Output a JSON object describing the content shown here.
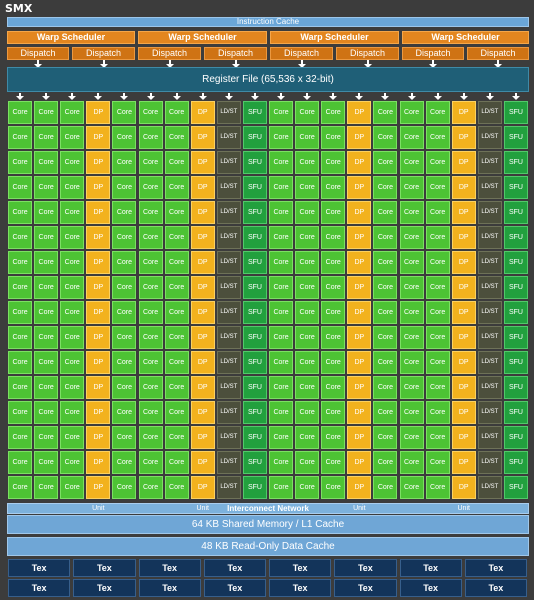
{
  "title": "SMX",
  "instruction_cache": "Instruction Cache",
  "warp_scheduler_label": "Warp Scheduler",
  "dispatch_label": "Dispatch",
  "register_file": "Register File (65,536 x 32-bit)",
  "unit_labels": {
    "core": "Core",
    "dp": "DP Unit",
    "ldst": "LD/ST",
    "sfu": "SFU"
  },
  "column_pattern": [
    "core",
    "core",
    "core",
    "dp",
    "core",
    "core",
    "core",
    "dp",
    "ldst",
    "sfu",
    "core",
    "core",
    "core",
    "dp",
    "core",
    "core",
    "core",
    "dp",
    "ldst",
    "sfu"
  ],
  "row_count": 16,
  "interconnect": "Interconnect Network",
  "shared_memory": "64 KB Shared Memory / L1 Cache",
  "readonly_cache": "48 KB Read-Only Data Cache",
  "tex_label": "Tex",
  "tex_rows": 2,
  "tex_cols": 8,
  "colors": {
    "core": "#4dc334",
    "dp_unit": "#f2b21e",
    "ldst": "#4c4f3c",
    "sfu": "#22a03e",
    "warp_scheduler": "#e3861f",
    "register_file": "#1f5f77",
    "cache": "#6fa6d6",
    "tex": "#13345a"
  }
}
